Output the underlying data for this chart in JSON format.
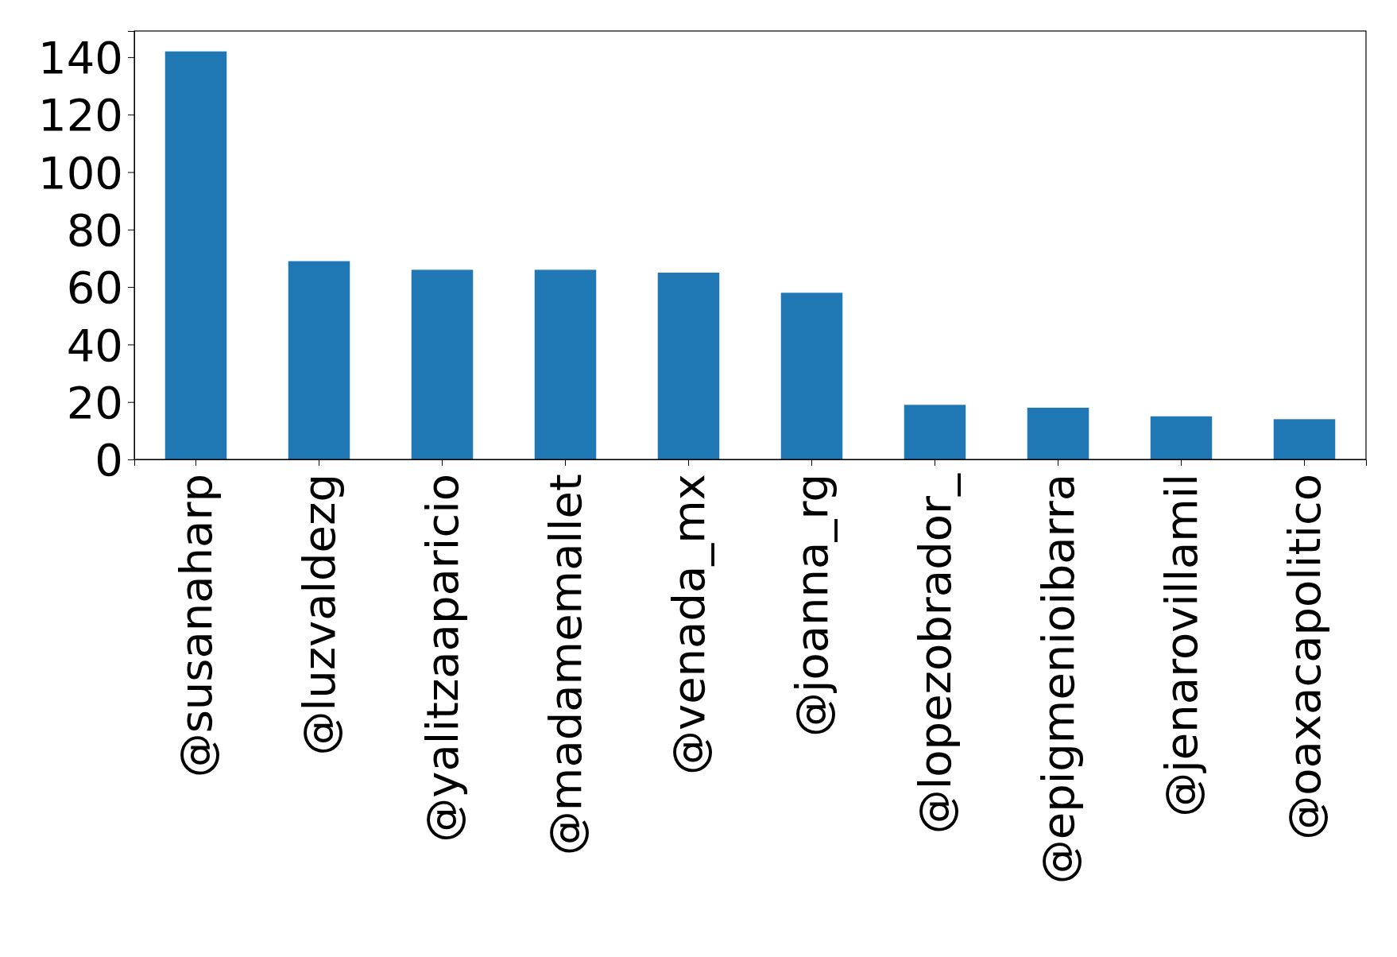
{
  "chart_data": {
    "type": "bar",
    "categories": [
      "@susanaharp",
      "@luzvaldezg",
      "@yalitzaaparicio",
      "@madamemallet",
      "@venada_mx",
      "@joanna_rg",
      "@lopezobrador_",
      "@epigmenioibarra",
      "@jenarovillamil",
      "@oaxacapolitico"
    ],
    "values": [
      142,
      69,
      66,
      66,
      65,
      58,
      19,
      18,
      15,
      14
    ],
    "color": "#1f77b4",
    "ylim": [
      0,
      149.1
    ],
    "yticks": [
      0,
      20,
      40,
      60,
      80,
      100,
      120,
      140
    ]
  }
}
